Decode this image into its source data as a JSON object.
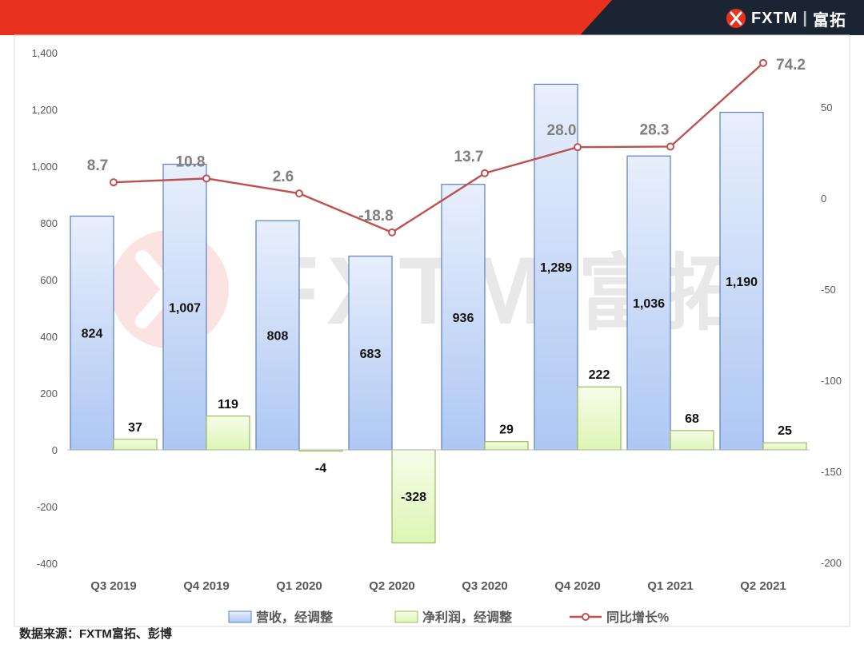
{
  "brand": {
    "logo_text": "FXTM",
    "logo_cn": "富拓",
    "watermark_text": "FXTM",
    "watermark_cn": "富拓",
    "colors": {
      "banner": "#e8321e",
      "banner_dark": "#1b2433",
      "revenue": "#aec7f3",
      "profit": "#ddf5b5",
      "growth": "#c0504d"
    }
  },
  "source_text": "数据来源：FXTM富拓、彭博",
  "chart_data": {
    "type": "bar",
    "categories": [
      "Q3 2019",
      "Q4 2019",
      "Q1 2020",
      "Q2 2020",
      "Q3 2020",
      "Q4 2020",
      "Q1 2021",
      "Q2 2021"
    ],
    "series": [
      {
        "name": "营收，经调整",
        "type": "bar",
        "axis": "left",
        "values": [
          824,
          1007,
          808,
          683,
          936,
          1289,
          1036,
          1190
        ],
        "labels": [
          "824",
          "1,007",
          "808",
          "683",
          "936",
          "1,289",
          "1,036",
          "1,190"
        ]
      },
      {
        "name": "净利润，经调整",
        "type": "bar",
        "axis": "left",
        "values": [
          37,
          119,
          -4,
          -328,
          29,
          222,
          68,
          25
        ],
        "labels": [
          "37",
          "119",
          "-4",
          "-328",
          "29",
          "222",
          "68",
          "25"
        ]
      },
      {
        "name": "同比增长%",
        "type": "line",
        "axis": "right",
        "values": [
          8.7,
          10.8,
          2.6,
          -18.8,
          13.7,
          28.0,
          28.3,
          74.2
        ],
        "labels": [
          "8.7",
          "10.8",
          "2.6",
          "-18.8",
          "13.7",
          "28.0",
          "28.3",
          "74.2"
        ]
      }
    ],
    "y_left": {
      "min": -400,
      "max": 1400,
      "ticks": [
        -400,
        -200,
        0,
        200,
        400,
        600,
        800,
        1000,
        1200,
        1400
      ],
      "tick_labels": [
        "-400",
        "-200",
        "0",
        "200",
        "400",
        "600",
        "800",
        "1,000",
        "1,200",
        "1,400"
      ]
    },
    "y_right": {
      "min": -200,
      "max": 100,
      "ticks": [
        -200,
        -150,
        -100,
        -50,
        0,
        50
      ],
      "tick_labels": [
        "-200",
        "-150",
        "-100",
        "-50",
        "0",
        "50"
      ]
    },
    "grid": false,
    "legend_position": "bottom"
  }
}
